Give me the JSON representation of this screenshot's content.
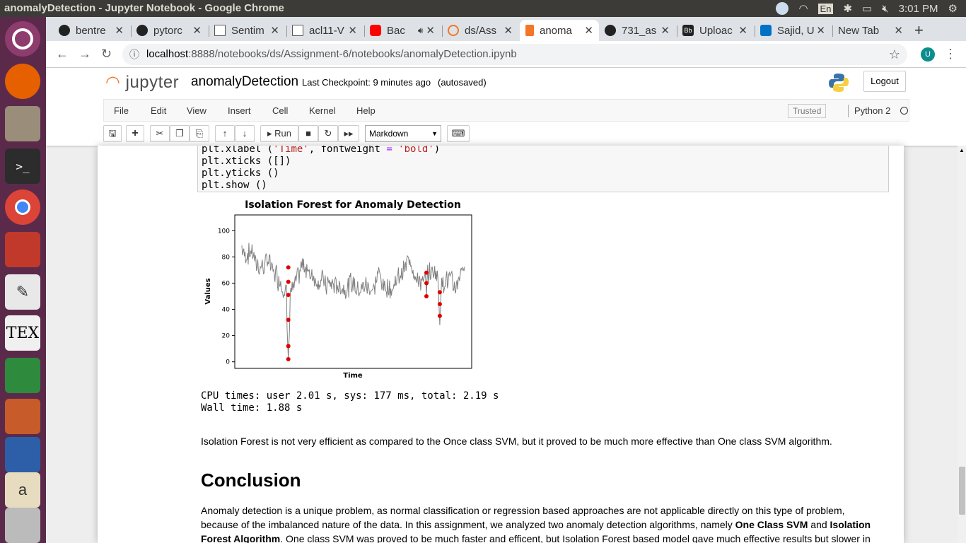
{
  "topbar": {
    "window_title": "anomalyDetection - Jupyter Notebook - Google Chrome",
    "keyboard": "En",
    "clock": "3:01 PM"
  },
  "launcher": {
    "items": [
      "ubuntu-icon",
      "firefox-icon",
      "files-icon",
      "terminal-icon",
      "chrome-icon",
      "pdf-viewer-icon",
      "text-editor-icon",
      "tex-icon",
      "spreadsheet-icon",
      "presentation-icon",
      "writer-icon",
      "fonts-icon",
      "trash-icon"
    ]
  },
  "tabs": [
    {
      "label": "bentre",
      "icon": "github-icon"
    },
    {
      "label": "pytorc",
      "icon": "github-icon"
    },
    {
      "label": "Sentim",
      "icon": "document-icon"
    },
    {
      "label": "acl11-V",
      "icon": "document-icon"
    },
    {
      "label": "Bac",
      "icon": "youtube-icon"
    },
    {
      "label": "ds/Ass",
      "icon": "jupyter-icon"
    },
    {
      "label": "anoma",
      "icon": "jupyter-icon",
      "active": true
    },
    {
      "label": "731_as",
      "icon": "github-icon"
    },
    {
      "label": "Uploac",
      "icon": "blackboard-icon"
    },
    {
      "label": "Sajid, U",
      "icon": "outlook-icon"
    },
    {
      "label": "New Tab",
      "icon": "none"
    }
  ],
  "address": {
    "host": "localhost",
    "path": ":8888/notebooks/ds/Assignment-6/notebooks/anomalyDetection.ipynb",
    "avatar": "U"
  },
  "jupyter": {
    "logo": "jupyter",
    "notebook_name": "anomalyDetection",
    "checkpoint": "Last Checkpoint: 9 minutes ago",
    "autosave": "(autosaved)",
    "logout": "Logout",
    "menus": [
      "File",
      "Edit",
      "View",
      "Insert",
      "Cell",
      "Kernel",
      "Help"
    ],
    "trusted": "Trusted",
    "kernel": "Python 2",
    "run_label": "Run",
    "cell_type": "Markdown"
  },
  "code": {
    "line1_a": "plt.xlabel (",
    "line1_s": "'Time'",
    "line1_b": ", fontweight ",
    "line1_eq": "=",
    "line1_s2": " 'bold'",
    "line1_c": ")",
    "line2": "plt.xticks ([])",
    "line3": "plt.yticks ()",
    "line4": "plt.show ()"
  },
  "chart_data": {
    "type": "line",
    "title": "Isolation Forest for Anomaly Detection",
    "xlabel": "Time",
    "ylabel": "Values",
    "ylim": [
      -5,
      112
    ],
    "yticks": [
      0,
      20,
      40,
      60,
      80,
      100
    ],
    "line_color": "#808080",
    "anomaly_color": "#e00000",
    "anomaly_points": [
      {
        "x": 146,
        "y": 72
      },
      {
        "x": 146,
        "y": 61
      },
      {
        "x": 146,
        "y": 51
      },
      {
        "x": 146,
        "y": 32
      },
      {
        "x": 146,
        "y": 12
      },
      {
        "x": 146,
        "y": 2
      },
      {
        "x": 580,
        "y": 68
      },
      {
        "x": 580,
        "y": 60
      },
      {
        "x": 580,
        "y": 50
      },
      {
        "x": 622,
        "y": 53
      },
      {
        "x": 622,
        "y": 44
      },
      {
        "x": 622,
        "y": 35
      }
    ]
  },
  "output": {
    "cpu": "CPU times: user 2.01 s, sys: 177 ms, total: 2.19 s",
    "wall": "Wall time: 1.88 s"
  },
  "text": {
    "para1": "Isolation Forest is not very efficient as compared to the Once class SVM, but it proved to be much more effective than One class SVM algorithm.",
    "conclusion": "Conclusion",
    "para2_a": "Anomaly detection is a unique problem, as normal classification or regression based approaches are not applicable directly on this type of problem, because of the imbalanced nature of the data. In this assignment, we analyzed two anomaly detection algorithms, namely ",
    "para2_b": "One Class SVM",
    "para2_c": " and ",
    "para2_d": "Isolation Forest Algorithm",
    "para2_e": ". One class SVM was proved to be much faster and efficent, but Isolation Forest based model gave much effective results but slower in"
  }
}
